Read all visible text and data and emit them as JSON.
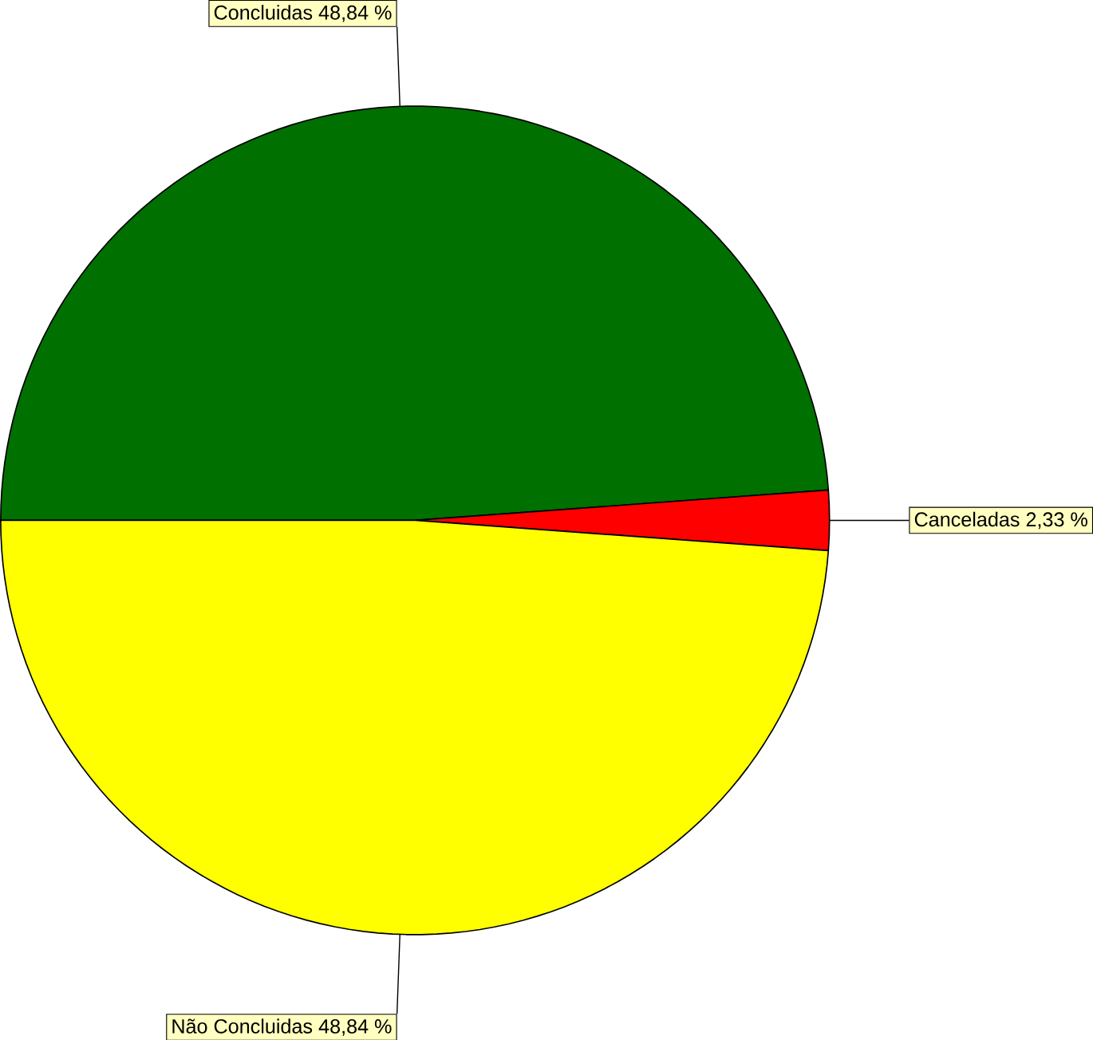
{
  "chart_data": {
    "type": "pie",
    "categories": [
      "Concluidas",
      "Canceladas",
      "Não Concluidas"
    ],
    "values": [
      48.84,
      2.33,
      48.84
    ],
    "colors": [
      "#007000",
      "#ff0000",
      "#ffff00"
    ],
    "value_labels": [
      "48,84 %",
      "2,33 %",
      "48,84 %"
    ]
  }
}
